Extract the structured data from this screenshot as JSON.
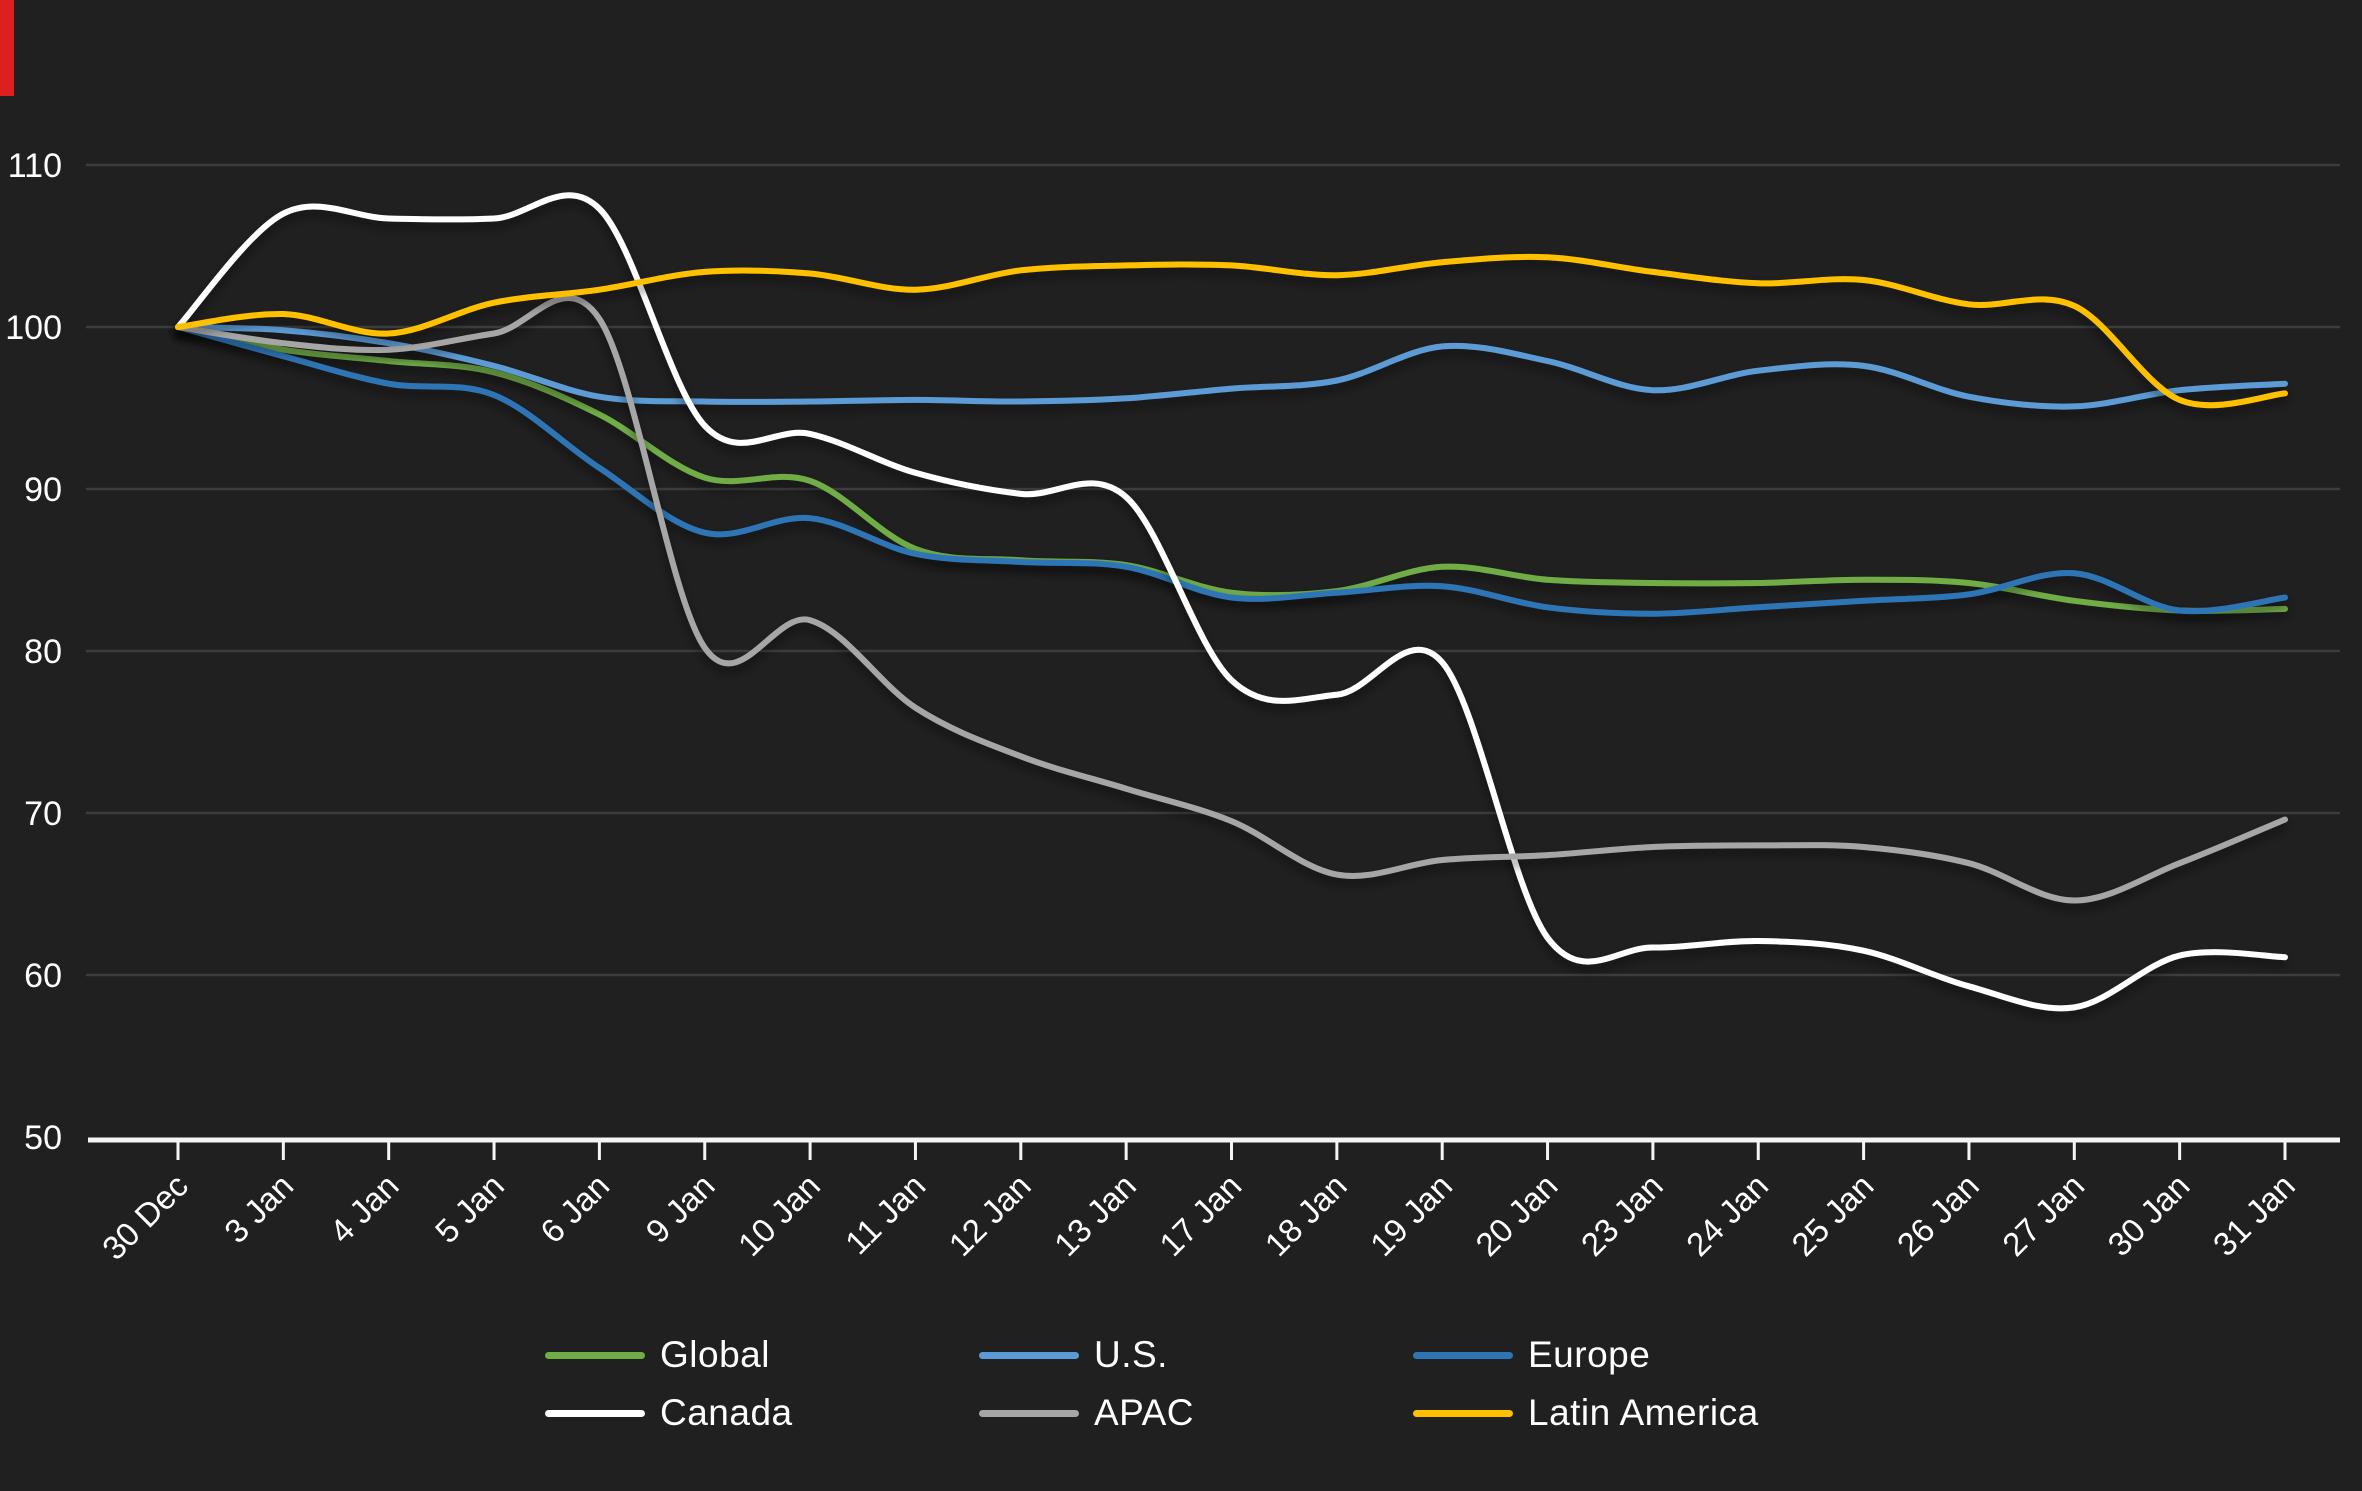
{
  "page": {
    "background": "#202020",
    "corner_marker_color": "#de1f1f"
  },
  "chart_data": {
    "type": "line",
    "title": "",
    "xlabel": "",
    "ylabel": "",
    "categories": [
      "30 Dec",
      "3 Jan",
      "4 Jan",
      "5 Jan",
      "6 Jan",
      "9 Jan",
      "10 Jan",
      "11 Jan",
      "12 Jan",
      "13 Jan",
      "17 Jan",
      "18 Jan",
      "19 Jan",
      "20 Jan",
      "23 Jan",
      "24 Jan",
      "25 Jan",
      "26 Jan",
      "27 Jan",
      "30 Jan",
      "31 Jan"
    ],
    "series": [
      {
        "name": "Global",
        "color": "#70AD47",
        "values": [
          100,
          98.6,
          97.9,
          97.2,
          94.6,
          90.7,
          90.5,
          86.3,
          85.6,
          85.3,
          83.6,
          83.7,
          85.2,
          84.4,
          84.2,
          84.2,
          84.4,
          84.2,
          83.1,
          82.5,
          82.6
        ]
      },
      {
        "name": "U.S.",
        "color": "#5B9BD5",
        "values": [
          100,
          99.8,
          99.0,
          97.6,
          95.7,
          95.4,
          95.4,
          95.5,
          95.4,
          95.6,
          96.2,
          96.7,
          98.8,
          97.9,
          96.1,
          97.3,
          97.6,
          95.7,
          95.1,
          96.1,
          96.5
        ]
      },
      {
        "name": "Europe",
        "color": "#2E75B6",
        "values": [
          100,
          98.2,
          96.5,
          95.8,
          91.3,
          87.3,
          88.2,
          86.0,
          85.5,
          85.2,
          83.3,
          83.6,
          84.0,
          82.7,
          82.3,
          82.7,
          83.1,
          83.5,
          84.8,
          82.5,
          83.3
        ]
      },
      {
        "name": "Canada",
        "color": "#FFFFFF",
        "values": [
          100,
          107.0,
          106.7,
          106.7,
          107.3,
          93.9,
          93.4,
          91.0,
          89.7,
          89.5,
          78.2,
          77.3,
          79.3,
          62.3,
          61.7,
          62.1,
          61.5,
          59.3,
          58.0,
          61.2,
          61.1
        ]
      },
      {
        "name": "APAC",
        "color": "#A6A6A6",
        "values": [
          100,
          99.0,
          98.6,
          99.6,
          100.5,
          80.2,
          81.9,
          76.5,
          73.5,
          71.5,
          69.5,
          66.2,
          67.1,
          67.4,
          67.9,
          68.0,
          67.9,
          66.9,
          64.6,
          66.9,
          69.6
        ]
      },
      {
        "name": "Latin America",
        "color": "#FFC000",
        "values": [
          100,
          100.8,
          99.6,
          101.5,
          102.3,
          103.4,
          103.3,
          102.3,
          103.5,
          103.8,
          103.8,
          103.2,
          104.0,
          104.3,
          103.4,
          102.7,
          102.9,
          101.4,
          101.3,
          95.5,
          95.9
        ]
      }
    ],
    "ylim": [
      50,
      110
    ],
    "y_ticks": [
      110,
      100,
      90,
      80,
      70,
      60,
      50
    ],
    "x_label_rotation": -45,
    "grid": true,
    "legend_position": "bottom",
    "colors": {
      "gridline": "#3d3d3d",
      "axis": "#f5f5f5",
      "tick_label": "#ffffff"
    }
  }
}
